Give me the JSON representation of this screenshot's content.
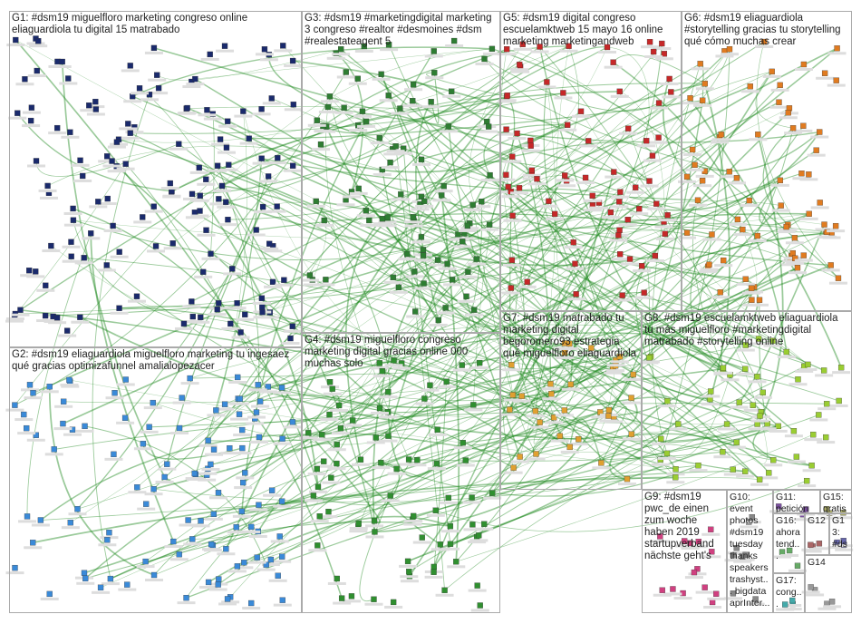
{
  "groups": [
    {
      "label": "G1: #dsm19 miguelfloro marketing congreso online eliaguardiola tu digital 15 matrabado"
    },
    {
      "label": "G2: #dsm19 eliaguardiola miguelfloro marketing tu ingesaez qué gracias optimizafunnel amalialopezacer"
    },
    {
      "label": "G3: #dsm19 #marketingdigital marketing 3 congreso #realtor #desmoines #dsm #realestateagent 5"
    },
    {
      "label": "G4: #dsm19 miguelfloro congreso marketing digital gracias online 000 muchas solo"
    },
    {
      "label": "G5: #dsm19 digital congreso escuelamktweb 15 mayo 16 online marketing marketingandweb"
    },
    {
      "label": "G6: #dsm19 eliaguardiola #storytelling gracias tu storytelling qué cómo muchas crear"
    },
    {
      "label": "G7: #dsm19 matrabado tu marketing digital begoromero93 estrategia qué miguelfloro eliaguardiola"
    },
    {
      "label": "G8: #dsm19 escuelamktweb eliaguardiola tu más miguelfloro #marketingdigital matrabado #storytelling online"
    },
    {
      "label": "G9: #dsm19 pwc_de einen zum woche haben 2019 startupverband nächste geht's"
    },
    {
      "label": "G10: event photos #dsm19 tuesday thanks speakers trashyst... bigdata aprInter..."
    },
    {
      "label": "G11: petición"
    },
    {
      "label": "G15: gratis"
    },
    {
      "label": "G16: ahora tend..."
    },
    {
      "label": "G12"
    },
    {
      "label": "G13: #ds... qué ho..."
    },
    {
      "label": "G17: cong... #mar..."
    },
    {
      "label": "G14"
    }
  ]
}
